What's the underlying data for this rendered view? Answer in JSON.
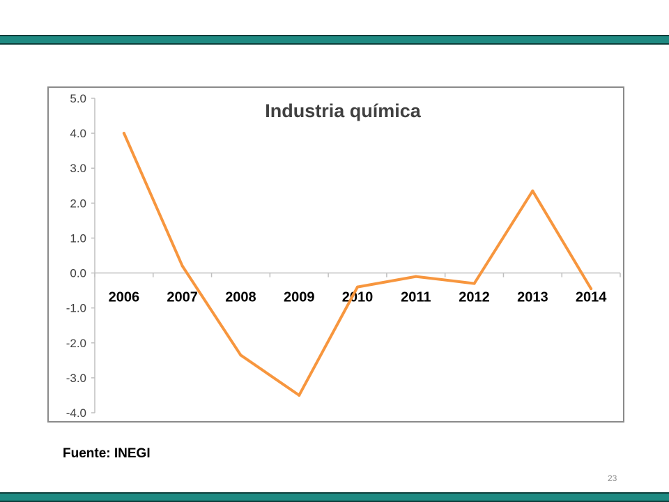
{
  "slide": {
    "source_label": "Fuente: INEGI",
    "page_number": "23",
    "accent_color": "#1f8a82",
    "accent_dark_color": "#0d3d3a"
  },
  "chart_data": {
    "type": "line",
    "title": "Industria química",
    "xlabel": "",
    "ylabel": "",
    "categories": [
      "2006",
      "2007",
      "2008",
      "2009",
      "2010",
      "2011",
      "2012",
      "2013",
      "2014"
    ],
    "series": [
      {
        "values": [
          4.0,
          0.2,
          -2.35,
          -3.5,
          -0.4,
          -0.1,
          -0.3,
          2.35,
          -0.45
        ],
        "color": "#f7963e"
      }
    ],
    "ylim": [
      -4.0,
      5.0
    ],
    "yticks": [
      "5.0",
      "4.0",
      "3.0",
      "2.0",
      "1.0",
      "0.0",
      "-1.0",
      "-2.0",
      "-3.0",
      "-4.0"
    ],
    "grid": false,
    "legend": "none",
    "axis_color": "#bfbfbf",
    "x_axis_at": 0.0
  }
}
